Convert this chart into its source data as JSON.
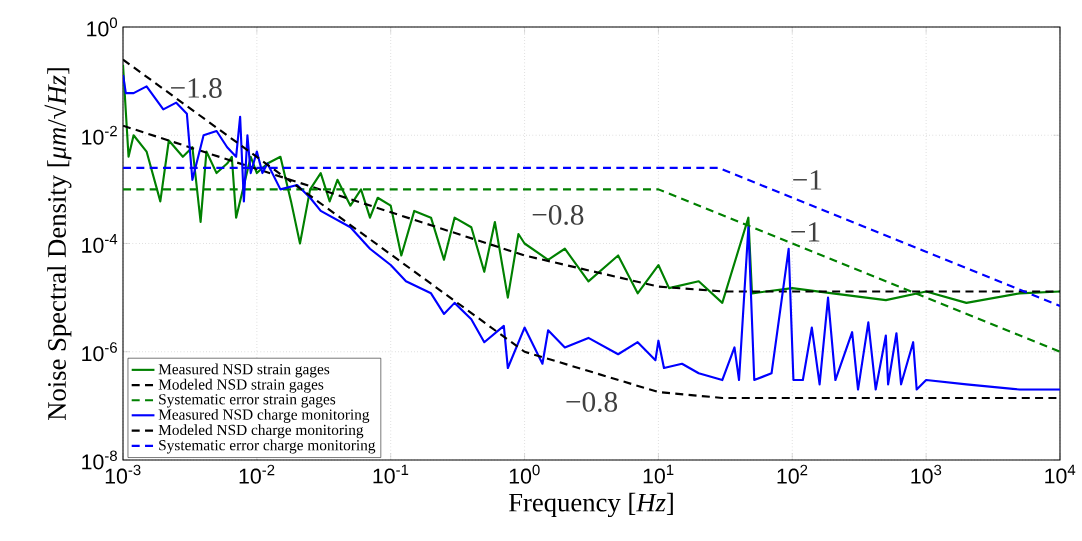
{
  "chart_data": {
    "type": "line",
    "xlabel": "Frequency [*Hz*]",
    "ylabel": "Noise Spectral Density [*μm*/√*Hz*]",
    "log": "xy",
    "grid": true,
    "legend": "bottom left",
    "marker": "none",
    "xlim": [
      0.001,
      10000
    ],
    "ylim": [
      1e-08,
      1
    ],
    "xticks": [
      {
        "value": 0.001,
        "label": "10$^{-3}$"
      },
      {
        "value": 0.01,
        "label": "10$^{-2}$"
      },
      {
        "value": 0.1,
        "label": "10$^{-1}$"
      },
      {
        "value": 1,
        "label": "10$^{0}$"
      },
      {
        "value": 10,
        "label": "10$^{1}$"
      },
      {
        "value": 100,
        "label": "10$^{2}$"
      },
      {
        "value": 1000,
        "label": "10$^{3}$"
      },
      {
        "value": 10000,
        "label": "10$^{4}$"
      }
    ],
    "yticks": [
      {
        "value": 1e-08,
        "label": "10$^{-8}$"
      },
      {
        "value": 1e-06,
        "label": "10$^{-6}$"
      },
      {
        "value": 0.0001,
        "label": "10$^{-4}$"
      },
      {
        "value": 0.01,
        "label": "10$^{-2}$"
      },
      {
        "value": 1,
        "label": "10$^{0}$"
      }
    ],
    "series": [
      {
        "name": "Measured NSD strain gages",
        "color": "#008000",
        "line_style": "solid",
        "x": [
          0.001,
          0.0011,
          0.0012,
          0.0015,
          0.0019,
          0.0022,
          0.0028,
          0.0033,
          0.0038,
          0.0042,
          0.005,
          0.006,
          0.0065,
          0.007,
          0.009,
          0.01,
          0.012,
          0.015,
          0.018,
          0.021,
          0.025,
          0.03,
          0.035,
          0.04,
          0.05,
          0.06,
          0.07,
          0.08,
          0.1,
          0.12,
          0.15,
          0.2,
          0.25,
          0.3,
          0.4,
          0.5,
          0.6,
          0.75,
          0.9,
          1,
          1.5,
          2,
          3,
          5,
          7,
          10,
          12,
          20,
          30,
          47,
          50,
          100,
          200,
          500,
          1000,
          2000,
          5000,
          10000
        ],
        "values": [
          0.2,
          0.004,
          0.01,
          0.005,
          0.0006,
          0.008,
          0.004,
          0.006,
          0.00025,
          0.005,
          0.002,
          0.003,
          0.004,
          0.0003,
          0.004,
          0.002,
          0.003,
          0.004,
          0.0006,
          0.0001,
          0.001,
          0.002,
          0.0006,
          0.0015,
          0.0005,
          0.001,
          0.0003,
          0.0007,
          0.0005,
          6e-05,
          0.0004,
          0.0003,
          5e-05,
          0.0003,
          0.0002,
          3e-05,
          0.00025,
          1e-05,
          0.00015,
          0.0001,
          5e-05,
          8e-05,
          2e-05,
          6e-05,
          1.2e-05,
          4e-05,
          1.5e-05,
          2e-05,
          8e-06,
          0.0003,
          1.2e-05,
          1.5e-05,
          1.2e-05,
          9e-06,
          1.3e-05,
          8e-06,
          1.2e-05,
          1.3e-05
        ]
      },
      {
        "name": "Modeled NSD strain gages",
        "color": "#000000",
        "line_style": "dashed",
        "x": [
          0.001,
          1,
          10,
          30,
          10000
        ],
        "values": [
          0.015,
          6e-05,
          1.6e-05,
          1.3e-05,
          1.3e-05
        ]
      },
      {
        "name": "Systematic error strain gages",
        "color": "#008000",
        "line_style": "dashed",
        "x": [
          0.001,
          10,
          10000
        ],
        "values": [
          0.001,
          0.001,
          1e-06
        ]
      },
      {
        "name": "Measured NSD charge monitoring",
        "color": "#0000ff",
        "line_style": "solid",
        "x": [
          0.001,
          0.00105,
          0.0012,
          0.0015,
          0.002,
          0.0025,
          0.003,
          0.0033,
          0.004,
          0.005,
          0.006,
          0.007,
          0.0075,
          0.008,
          0.0085,
          0.009,
          0.01,
          0.011,
          0.012,
          0.015,
          0.02,
          0.025,
          0.03,
          0.05,
          0.07,
          0.1,
          0.13,
          0.2,
          0.25,
          0.3,
          0.4,
          0.5,
          0.7,
          0.75,
          1,
          1.36,
          1.5,
          2,
          3,
          5,
          7,
          9.5,
          10,
          11,
          15,
          20,
          30,
          37,
          40,
          47,
          52,
          70,
          94,
          102,
          120,
          140,
          160,
          185,
          210,
          280,
          310,
          370,
          420,
          500,
          520,
          600,
          650,
          800,
          850,
          1000,
          2000,
          5000,
          10000
        ],
        "values": [
          0.13,
          0.06,
          0.06,
          0.08,
          0.03,
          0.04,
          0.025,
          0.0015,
          0.01,
          0.012,
          0.006,
          0.004,
          0.022,
          0.0006,
          0.01,
          0.002,
          0.005,
          0.002,
          0.003,
          0.001,
          0.0012,
          0.0007,
          0.0004,
          0.0002,
          8e-05,
          4e-05,
          2e-05,
          1.2e-05,
          5e-06,
          8e-06,
          4e-06,
          1.5e-06,
          3e-06,
          5e-07,
          2.8e-06,
          6e-07,
          2.5e-06,
          1.2e-06,
          1.8e-06,
          9e-07,
          1.5e-06,
          7e-07,
          1.6e-06,
          5e-07,
          6e-07,
          4e-07,
          3e-07,
          1.2e-06,
          3e-07,
          0.0002,
          3e-07,
          4e-07,
          8e-05,
          3e-07,
          3e-07,
          2.8e-06,
          2.5e-07,
          1e-05,
          3e-07,
          2.3e-06,
          2e-07,
          3.5e-06,
          2e-07,
          2e-06,
          2.5e-07,
          2.2e-06,
          2.5e-07,
          1.5e-06,
          2e-07,
          3e-07,
          2.5e-07,
          2e-07,
          2e-07
        ]
      },
      {
        "name": "Modeled NSD charge monitoring",
        "color": "#000000",
        "line_style": "dashed",
        "x": [
          0.001,
          1,
          10,
          30,
          10000
        ],
        "values": [
          0.25,
          1e-06,
          1.8e-07,
          1.4e-07,
          1.4e-07
        ]
      },
      {
        "name": "Systematic error charge monitoring",
        "color": "#0000ff",
        "line_style": "dashed",
        "x": [
          0.001,
          28,
          10000
        ],
        "values": [
          0.0025,
          0.0025,
          7e-06
        ]
      }
    ],
    "annotations": [
      "−1.8",
      "−0.8",
      "−1",
      "−1",
      "−0.8"
    ]
  }
}
